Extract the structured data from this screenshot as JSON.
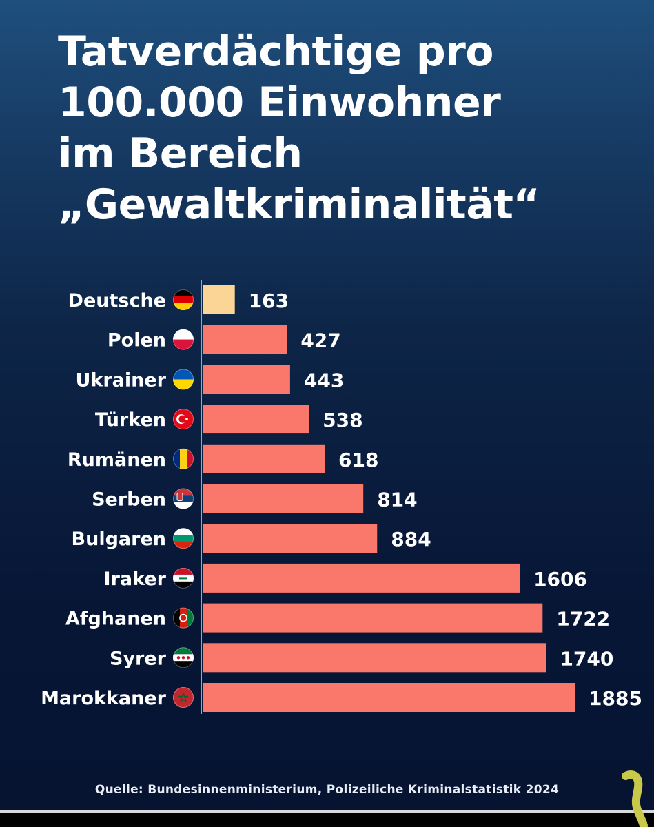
{
  "title_lines": [
    "Tatverdächtige pro",
    "100.000 Einwohner",
    "im Bereich",
    "„Gewaltkriminalität“"
  ],
  "source": "Quelle: Bundesinnenministerium, Polizeiliche Kriminalstatistik 2024",
  "colors": {
    "highlight_bar": "#fbd596",
    "bar": "#f9776b",
    "axis_line": "#9aa6b8"
  },
  "chart_data": {
    "type": "bar",
    "orientation": "horizontal",
    "title": "Tatverdächtige pro 100.000 Einwohner im Bereich „Gewaltkriminalität“",
    "categories": [
      "Deutsche",
      "Polen",
      "Ukrainer",
      "Türken",
      "Rumänen",
      "Serben",
      "Bulgaren",
      "Iraker",
      "Afghanen",
      "Syrer",
      "Marokkaner"
    ],
    "flags": [
      "germany-flag-icon",
      "poland-flag-icon",
      "ukraine-flag-icon",
      "turkey-flag-icon",
      "romania-flag-icon",
      "serbia-flag-icon",
      "bulgaria-flag-icon",
      "iraq-flag-icon",
      "afghanistan-flag-icon",
      "syria-flag-icon",
      "morocco-flag-icon"
    ],
    "values": [
      163,
      427,
      443,
      538,
      618,
      814,
      884,
      1606,
      1722,
      1740,
      1885
    ],
    "highlighted": [
      "Deutsche"
    ],
    "xlabel": "",
    "ylabel": "",
    "xlim": [
      0,
      1885
    ],
    "grid": false,
    "legend": "none"
  }
}
